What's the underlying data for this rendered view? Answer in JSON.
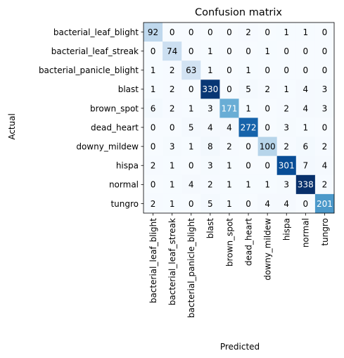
{
  "chart_data": {
    "type": "heatmap",
    "title": "Confusion matrix",
    "xlabel": "Predicted",
    "ylabel": "Actual",
    "labels": [
      "bacterial_leaf_blight",
      "bacterial_leaf_streak",
      "bacterial_panicle_blight",
      "blast",
      "brown_spot",
      "dead_heart",
      "downy_mildew",
      "hispa",
      "normal",
      "tungro"
    ],
    "matrix": [
      [
        92,
        0,
        0,
        0,
        0,
        2,
        0,
        1,
        1,
        0
      ],
      [
        0,
        74,
        0,
        1,
        0,
        0,
        1,
        0,
        0,
        0
      ],
      [
        1,
        2,
        63,
        1,
        0,
        1,
        0,
        0,
        0,
        0
      ],
      [
        1,
        2,
        0,
        330,
        0,
        5,
        2,
        1,
        4,
        3
      ],
      [
        6,
        2,
        1,
        3,
        171,
        1,
        0,
        2,
        4,
        3
      ],
      [
        0,
        0,
        5,
        4,
        4,
        272,
        0,
        3,
        1,
        0
      ],
      [
        0,
        3,
        1,
        8,
        2,
        0,
        100,
        2,
        6,
        2
      ],
      [
        2,
        1,
        0,
        3,
        1,
        0,
        0,
        301,
        7,
        4
      ],
      [
        0,
        1,
        4,
        2,
        1,
        1,
        1,
        3,
        338,
        2
      ],
      [
        2,
        1,
        0,
        5,
        1,
        0,
        4,
        4,
        0,
        201
      ]
    ],
    "colormap": "Blues",
    "vmin": 0,
    "vmax": 338,
    "grid": false
  }
}
